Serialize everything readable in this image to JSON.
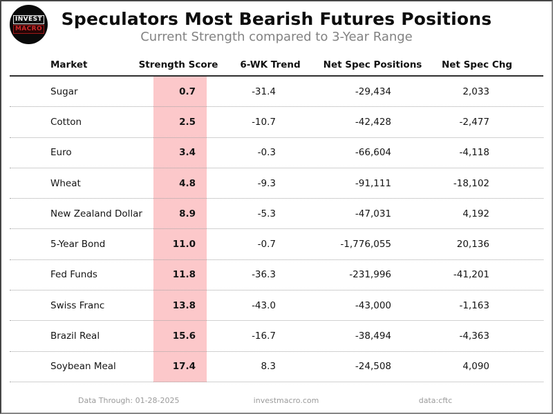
{
  "header": {
    "title": "Speculators Most Bearish Futures Positions",
    "subtitle": "Current Strength compared to 3-Year Range"
  },
  "logo": {
    "line1": "INVEST",
    "line2": "MACRO"
  },
  "chart_data": {
    "type": "table",
    "title": "Speculators Most Bearish Futures Positions",
    "subtitle": "Current Strength compared to 3-Year Range",
    "columns": [
      "Market",
      "Strength Score",
      "6-WK Trend",
      "Net Spec Positions",
      "Net Spec Chg"
    ],
    "highlighted_column": "Strength Score",
    "rows": [
      {
        "market": "Sugar",
        "score": "0.7",
        "trend": "-31.4",
        "positions": "-29,434",
        "chg": "2,033"
      },
      {
        "market": "Cotton",
        "score": "2.5",
        "trend": "-10.7",
        "positions": "-42,428",
        "chg": "-2,477"
      },
      {
        "market": "Euro",
        "score": "3.4",
        "trend": "-0.3",
        "positions": "-66,604",
        "chg": "-4,118"
      },
      {
        "market": "Wheat",
        "score": "4.8",
        "trend": "-9.3",
        "positions": "-91,111",
        "chg": "-18,102"
      },
      {
        "market": "New Zealand Dollar",
        "score": "8.9",
        "trend": "-5.3",
        "positions": "-47,031",
        "chg": "4,192"
      },
      {
        "market": "5-Year Bond",
        "score": "11.0",
        "trend": "-0.7",
        "positions": "-1,776,055",
        "chg": "20,136"
      },
      {
        "market": "Fed Funds",
        "score": "11.8",
        "trend": "-36.3",
        "positions": "-231,996",
        "chg": "-41,201"
      },
      {
        "market": "Swiss Franc",
        "score": "13.8",
        "trend": "-43.0",
        "positions": "-43,000",
        "chg": "-1,163"
      },
      {
        "market": "Brazil Real",
        "score": "15.6",
        "trend": "-16.7",
        "positions": "-38,494",
        "chg": "-4,363"
      },
      {
        "market": "Soybean Meal",
        "score": "17.4",
        "trend": "8.3",
        "positions": "-24,508",
        "chg": "4,090"
      }
    ]
  },
  "footer": {
    "data_through": "Data Through: 01-28-2025",
    "website": "investmacro.com",
    "source": "data:cftc"
  },
  "colors": {
    "score_band": "#fcc8ca",
    "logo_red": "#cf2a2a",
    "subtitle_gray": "#828282",
    "footer_gray": "#9a9a9a"
  }
}
